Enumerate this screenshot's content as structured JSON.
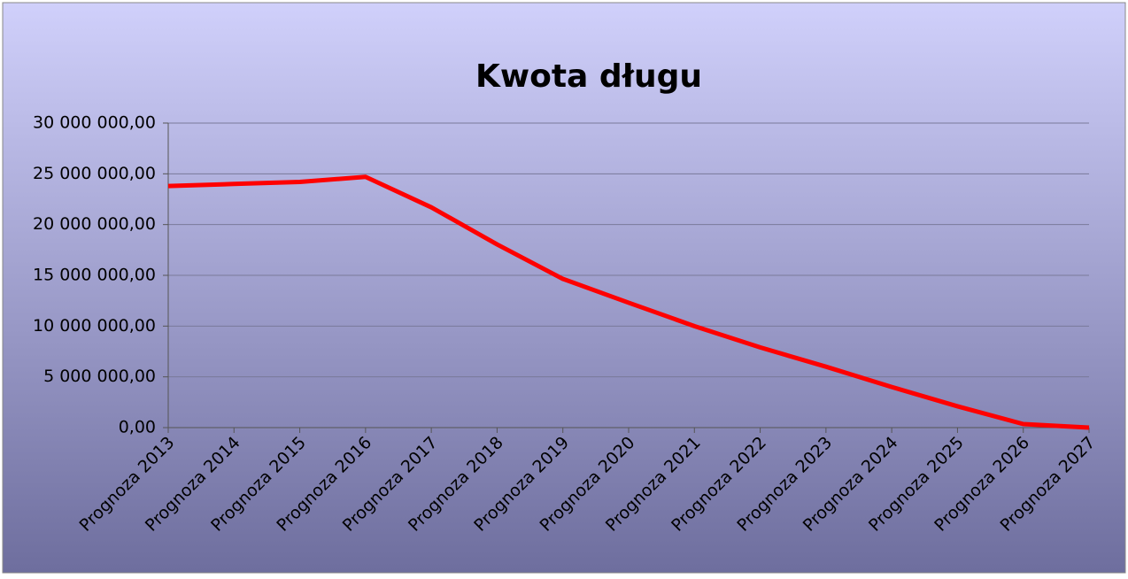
{
  "chart_data": {
    "type": "line",
    "title": "Kwota długu",
    "categories": [
      "Prognoza 2013",
      "Prognoza 2014",
      "Prognoza 2015",
      "Prognoza 2016",
      "Prognoza 2017",
      "Prognoza 2018",
      "Prognoza 2019",
      "Prognoza 2020",
      "Prognoza 2021",
      "Prognoza 2022",
      "Prognoza 2023",
      "Prognoza 2024",
      "Prognoza 2025",
      "Prognoza 2026",
      "Prognoza 2027"
    ],
    "series": [
      {
        "name": "Kwota długu",
        "color": "#ff0000",
        "values": [
          23800000,
          24000000,
          24200000,
          24700000,
          21700000,
          18050000,
          14650000,
          12300000,
          10000000,
          7900000,
          6000000,
          4000000,
          2100000,
          350000,
          0
        ]
      }
    ],
    "ylim": [
      0,
      30000000
    ],
    "yticks": [
      {
        "value": 0,
        "label": "0,00"
      },
      {
        "value": 5000000,
        "label": "5 000 000,00"
      },
      {
        "value": 10000000,
        "label": "10 000 000,00"
      },
      {
        "value": 15000000,
        "label": "15 000 000,00"
      },
      {
        "value": 20000000,
        "label": "20 000 000,00"
      },
      {
        "value": 25000000,
        "label": "25 000 000,00"
      },
      {
        "value": 30000000,
        "label": "30 000 000,00"
      }
    ],
    "grid": true
  }
}
